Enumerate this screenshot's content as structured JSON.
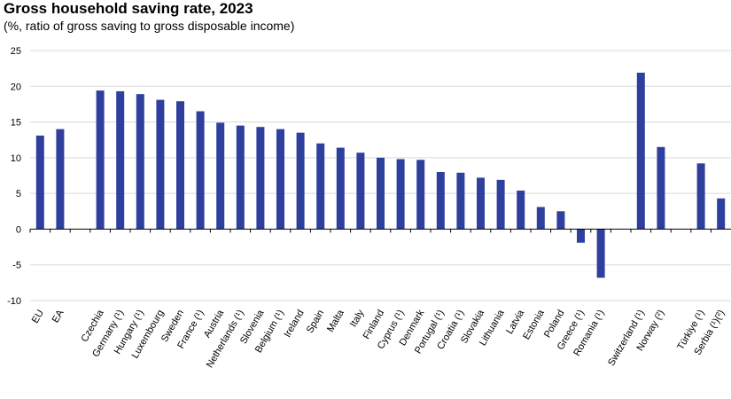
{
  "chart_data": {
    "type": "bar",
    "title": "Gross household saving rate, 2023",
    "subtitle": "(%, ratio of gross saving to gross disposable income)",
    "xlabel": "",
    "ylabel": "",
    "ylim": [
      -10,
      25
    ],
    "yticks": [
      25,
      20,
      15,
      10,
      5,
      0,
      -5,
      -10
    ],
    "grid": true,
    "legend": "none",
    "bar_color": "#2E3F9E",
    "categories": [
      "EU",
      "EA",
      "",
      "Czechia",
      "Germany (¹)",
      "Hungary (¹)",
      "Luxembourg",
      "Sweden",
      "France (¹)",
      "Austria",
      "Netherlands (¹)",
      "Slovenia",
      "Belgium (¹)",
      "Ireland",
      "Spain",
      "Malta",
      "Italy",
      "Finland",
      "Cyprus (¹)",
      "Denmark",
      "Portugal (¹)",
      "Croatia (¹)",
      "Slovakia",
      "Lithuania",
      "Latvia",
      "Estonia",
      "Poland",
      "Greece (¹)",
      "Romania (¹)",
      "",
      "Switzerland (¹)",
      "Norway (²)",
      "",
      "Türkiye (¹)",
      "Serbia (¹)(²)"
    ],
    "values": [
      13.1,
      14.0,
      null,
      19.4,
      19.3,
      18.9,
      18.1,
      17.9,
      16.5,
      14.9,
      14.5,
      14.3,
      14.0,
      13.5,
      12.0,
      11.4,
      10.7,
      10.0,
      9.8,
      9.7,
      8.0,
      7.9,
      7.2,
      6.9,
      5.4,
      3.1,
      2.5,
      -1.9,
      -6.8,
      null,
      21.9,
      11.5,
      null,
      9.2,
      4.3
    ]
  }
}
